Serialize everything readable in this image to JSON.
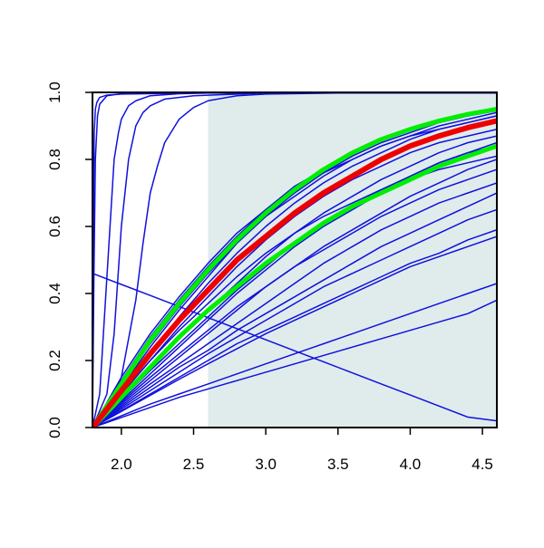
{
  "chart_data": {
    "type": "line",
    "title": "",
    "xlabel": "",
    "ylabel": "",
    "xlim": [
      1.8,
      4.6
    ],
    "ylim": [
      0.0,
      1.0
    ],
    "x_ticks": [
      "2.0",
      "2.5",
      "3.0",
      "3.5",
      "4.0",
      "4.5"
    ],
    "y_ticks": [
      "0.0",
      "0.2",
      "0.4",
      "0.6",
      "0.8",
      "1.0"
    ],
    "grid": false,
    "legend": "none",
    "shaded_region": {
      "x": [
        2.6,
        4.6
      ],
      "y": [
        0.0,
        1.0
      ],
      "color": "#e0ecec"
    },
    "colors": {
      "default": "#1010dd",
      "highlight": "#ee0000",
      "bounds": "#00ee00"
    },
    "series": [
      {
        "x": [
          1.8,
          1.805,
          1.812,
          1.82,
          1.83,
          1.85,
          1.9,
          2.0,
          2.5,
          3.0,
          4.6
        ],
        "y": [
          0.0,
          0.5,
          0.88,
          0.95,
          0.97,
          0.985,
          0.992,
          0.995,
          0.998,
          0.998,
          0.998
        ],
        "color": "blue",
        "width": 1.5
      },
      {
        "x": [
          1.8,
          1.81,
          1.82,
          1.835,
          1.85,
          1.9,
          2.0,
          2.5,
          4.6
        ],
        "y": [
          0.0,
          0.45,
          0.8,
          0.93,
          0.965,
          0.99,
          0.996,
          0.998,
          0.998
        ],
        "color": "blue",
        "width": 1.5
      },
      {
        "x": [
          1.8,
          1.85,
          1.9,
          1.95,
          1.98,
          2.0,
          2.05,
          2.1,
          2.2,
          2.4,
          2.6,
          4.6
        ],
        "y": [
          0.0,
          0.1,
          0.45,
          0.8,
          0.88,
          0.92,
          0.96,
          0.975,
          0.99,
          0.996,
          0.998,
          0.998
        ],
        "color": "blue",
        "width": 1.5
      },
      {
        "x": [
          1.8,
          1.9,
          1.95,
          2.0,
          2.05,
          2.08,
          2.1,
          2.15,
          2.2,
          2.3,
          2.5,
          3.0,
          4.6
        ],
        "y": [
          0.0,
          0.1,
          0.28,
          0.6,
          0.8,
          0.86,
          0.9,
          0.94,
          0.96,
          0.98,
          0.99,
          0.998,
          0.998
        ],
        "color": "blue",
        "width": 1.5
      },
      {
        "x": [
          1.8,
          1.9,
          2.0,
          2.1,
          2.15,
          2.2,
          2.25,
          2.3,
          2.4,
          2.5,
          2.6,
          2.8,
          3.0,
          3.5,
          4.6
        ],
        "y": [
          0.0,
          0.05,
          0.15,
          0.38,
          0.55,
          0.7,
          0.78,
          0.85,
          0.92,
          0.955,
          0.975,
          0.99,
          0.995,
          0.998,
          0.998
        ],
        "color": "blue",
        "width": 1.5
      },
      {
        "x": [
          1.8,
          2.0,
          2.2,
          2.4,
          2.6,
          2.8,
          3.0,
          3.2,
          3.4,
          3.6,
          3.8,
          4.0,
          4.2,
          4.4,
          4.6
        ],
        "y": [
          0.46,
          0.427,
          0.394,
          0.361,
          0.328,
          0.295,
          0.262,
          0.229,
          0.196,
          0.163,
          0.13,
          0.097,
          0.064,
          0.031,
          0.02
        ],
        "color": "blue",
        "width": 1.5
      },
      {
        "x": [
          1.8,
          2.0,
          2.2,
          2.4,
          2.6,
          2.8,
          3.0,
          3.2,
          3.4,
          3.6,
          3.8,
          4.0,
          4.2,
          4.4,
          4.6
        ],
        "y": [
          0.0,
          0.15,
          0.28,
          0.39,
          0.49,
          0.58,
          0.65,
          0.71,
          0.76,
          0.8,
          0.84,
          0.87,
          0.89,
          0.91,
          0.93
        ],
        "color": "blue",
        "width": 1.5
      },
      {
        "x": [
          1.8,
          2.0,
          2.2,
          2.4,
          2.6,
          2.8,
          3.0,
          3.2,
          3.4,
          3.6,
          3.8,
          4.0,
          4.2,
          4.4,
          4.6
        ],
        "y": [
          0.0,
          0.13,
          0.25,
          0.36,
          0.46,
          0.55,
          0.63,
          0.69,
          0.75,
          0.8,
          0.84,
          0.87,
          0.9,
          0.92,
          0.94
        ],
        "color": "blue",
        "width": 1.5
      },
      {
        "x": [
          1.8,
          2.0,
          2.2,
          2.4,
          2.6,
          2.8,
          3.0,
          3.2,
          3.4,
          3.6,
          3.8,
          4.0,
          4.2,
          4.4,
          4.6
        ],
        "y": [
          0.0,
          0.11,
          0.22,
          0.33,
          0.43,
          0.52,
          0.6,
          0.67,
          0.73,
          0.78,
          0.82,
          0.86,
          0.89,
          0.91,
          0.93
        ],
        "color": "blue",
        "width": 1.5
      },
      {
        "x": [
          1.8,
          2.0,
          2.2,
          2.4,
          2.6,
          2.8,
          3.0,
          3.2,
          3.4,
          3.6,
          3.8,
          4.0,
          4.2,
          4.4,
          4.6
        ],
        "y": [
          0.0,
          0.1,
          0.2,
          0.3,
          0.39,
          0.48,
          0.56,
          0.63,
          0.69,
          0.74,
          0.78,
          0.82,
          0.85,
          0.87,
          0.89
        ],
        "color": "blue",
        "width": 1.5
      },
      {
        "x": [
          1.8,
          2.0,
          2.2,
          2.4,
          2.6,
          2.8,
          3.0,
          3.2,
          3.4,
          3.6,
          3.8,
          4.0,
          4.2,
          4.4,
          4.6
        ],
        "y": [
          0.0,
          0.09,
          0.18,
          0.27,
          0.35,
          0.43,
          0.51,
          0.58,
          0.64,
          0.69,
          0.74,
          0.78,
          0.82,
          0.85,
          0.87
        ],
        "color": "blue",
        "width": 1.5
      },
      {
        "x": [
          1.8,
          2.0,
          2.2,
          2.4,
          2.6,
          2.8,
          3.0,
          3.2,
          3.4,
          3.6,
          3.8,
          4.0,
          4.2,
          4.4,
          4.6
        ],
        "y": [
          0.0,
          0.08,
          0.16,
          0.24,
          0.32,
          0.4,
          0.47,
          0.54,
          0.6,
          0.65,
          0.7,
          0.75,
          0.79,
          0.82,
          0.85
        ],
        "color": "blue",
        "width": 1.5
      },
      {
        "x": [
          1.8,
          2.0,
          2.2,
          2.4,
          2.6,
          2.8,
          3.0,
          3.2,
          3.4,
          3.6,
          3.8,
          4.0,
          4.2,
          4.4,
          4.6
        ],
        "y": [
          0.0,
          0.07,
          0.14,
          0.21,
          0.28,
          0.35,
          0.42,
          0.48,
          0.54,
          0.59,
          0.64,
          0.69,
          0.73,
          0.77,
          0.8
        ],
        "color": "blue",
        "width": 1.5
      },
      {
        "x": [
          1.8,
          2.0,
          2.2,
          2.4,
          2.6,
          2.8,
          3.0,
          3.2,
          3.4,
          3.6,
          3.8,
          4.0,
          4.2,
          4.4,
          4.6
        ],
        "y": [
          0.0,
          0.065,
          0.13,
          0.19,
          0.25,
          0.31,
          0.37,
          0.43,
          0.49,
          0.54,
          0.59,
          0.63,
          0.67,
          0.7,
          0.73
        ],
        "color": "blue",
        "width": 1.5
      },
      {
        "x": [
          1.8,
          2.0,
          2.2,
          2.4,
          2.6,
          2.8,
          3.0,
          3.2,
          3.4,
          3.6,
          3.8,
          4.0,
          4.2,
          4.4,
          4.6
        ],
        "y": [
          0.0,
          0.06,
          0.12,
          0.18,
          0.23,
          0.29,
          0.34,
          0.39,
          0.44,
          0.49,
          0.54,
          0.58,
          0.62,
          0.66,
          0.7
        ],
        "color": "blue",
        "width": 1.5
      },
      {
        "x": [
          1.8,
          2.0,
          2.2,
          2.4,
          2.6,
          2.8,
          3.0,
          3.2,
          3.4,
          3.6,
          3.8,
          4.0,
          4.2,
          4.4,
          4.6
        ],
        "y": [
          0.0,
          0.05,
          0.1,
          0.15,
          0.2,
          0.25,
          0.29,
          0.33,
          0.37,
          0.41,
          0.45,
          0.49,
          0.52,
          0.56,
          0.59
        ],
        "color": "blue",
        "width": 1.5
      },
      {
        "x": [
          1.8,
          2.0,
          2.2,
          2.4,
          2.6,
          2.8,
          3.0,
          3.2,
          3.4,
          3.6,
          3.8,
          4.0,
          4.2,
          4.4,
          4.6
        ],
        "y": [
          0.0,
          0.048,
          0.096,
          0.144,
          0.19,
          0.235,
          0.28,
          0.32,
          0.36,
          0.4,
          0.44,
          0.48,
          0.51,
          0.54,
          0.57
        ],
        "color": "blue",
        "width": 1.5
      },
      {
        "x": [
          1.8,
          2.0,
          2.2,
          2.4,
          2.6,
          2.8,
          3.0,
          3.2,
          3.4,
          3.6,
          3.8,
          4.0,
          4.2,
          4.4,
          4.6
        ],
        "y": [
          0.0,
          0.035,
          0.07,
          0.1,
          0.13,
          0.16,
          0.19,
          0.22,
          0.25,
          0.28,
          0.31,
          0.34,
          0.37,
          0.4,
          0.43
        ],
        "color": "blue",
        "width": 1.5
      },
      {
        "x": [
          1.8,
          2.0,
          2.2,
          2.4,
          2.6,
          2.8,
          3.0,
          3.2,
          3.4,
          3.6,
          3.8,
          4.0,
          4.2,
          4.4,
          4.6
        ],
        "y": [
          0.0,
          0.03,
          0.06,
          0.09,
          0.115,
          0.14,
          0.165,
          0.19,
          0.215,
          0.24,
          0.265,
          0.29,
          0.315,
          0.34,
          0.38
        ],
        "color": "blue",
        "width": 1.5
      },
      {
        "x": [
          1.8,
          2.0,
          2.2,
          2.4,
          2.6,
          2.8,
          3.0,
          3.2,
          3.4,
          3.6,
          3.8,
          4.0,
          4.2,
          4.4,
          4.6
        ],
        "y": [
          0.0,
          0.12,
          0.24,
          0.35,
          0.45,
          0.55,
          0.63,
          0.7,
          0.76,
          0.81,
          0.85,
          0.88,
          0.91,
          0.93,
          0.95
        ],
        "color": "blue",
        "width": 1.5
      },
      {
        "x": [
          1.8,
          2.0,
          2.2,
          2.4,
          2.6,
          2.8,
          3.0,
          3.2,
          3.4,
          3.6,
          3.8,
          4.0,
          4.2,
          4.4,
          4.6
        ],
        "y": [
          0.0,
          0.1,
          0.2,
          0.29,
          0.37,
          0.45,
          0.52,
          0.58,
          0.63,
          0.67,
          0.71,
          0.74,
          0.77,
          0.79,
          0.81
        ],
        "color": "blue",
        "width": 1.5
      },
      {
        "x": [
          1.8,
          2.0,
          2.2,
          2.4,
          2.6,
          2.8,
          3.0,
          3.2,
          3.4,
          3.6,
          3.8,
          4.0,
          4.2,
          4.4,
          4.6
        ],
        "y": [
          0.0,
          0.075,
          0.15,
          0.22,
          0.29,
          0.36,
          0.42,
          0.48,
          0.53,
          0.58,
          0.63,
          0.67,
          0.71,
          0.74,
          0.77
        ],
        "color": "blue",
        "width": 1.5
      },
      {
        "x": [
          1.8,
          2.0,
          2.2,
          2.4,
          2.6,
          2.8,
          3.0,
          3.2,
          3.4,
          3.6,
          3.8,
          4.0,
          4.2,
          4.4,
          4.6
        ],
        "y": [
          0.0,
          0.085,
          0.17,
          0.25,
          0.33,
          0.41,
          0.48,
          0.55,
          0.61,
          0.66,
          0.71,
          0.75,
          0.79,
          0.82,
          0.84
        ],
        "color": "blue",
        "width": 1.5
      },
      {
        "x": [
          1.8,
          2.0,
          2.2,
          2.4,
          2.6,
          2.8,
          3.0,
          3.2,
          3.4,
          3.6,
          3.8,
          4.0,
          4.2,
          4.4,
          4.6
        ],
        "y": [
          0.0,
          0.055,
          0.11,
          0.165,
          0.22,
          0.27,
          0.32,
          0.37,
          0.42,
          0.46,
          0.5,
          0.54,
          0.58,
          0.62,
          0.65
        ],
        "color": "blue",
        "width": 1.5
      },
      {
        "x": [
          1.8,
          2.0,
          2.2,
          2.4,
          2.6,
          2.8,
          3.0,
          3.2,
          3.4,
          3.6,
          3.8,
          4.0,
          4.2,
          4.4,
          4.6
        ],
        "y": [
          0.0,
          0.14,
          0.27,
          0.38,
          0.48,
          0.57,
          0.65,
          0.72,
          0.77,
          0.82,
          0.86,
          0.89,
          0.91,
          0.93,
          0.945
        ],
        "color": "blue",
        "width": 1.5
      },
      {
        "x": [
          1.8,
          2.0,
          2.2,
          2.4,
          2.6,
          2.8,
          3.0,
          3.2,
          3.4,
          3.6,
          3.8,
          4.0,
          4.2,
          4.4,
          4.6
        ],
        "y": [
          0.0,
          0.13,
          0.26,
          0.37,
          0.47,
          0.56,
          0.64,
          0.71,
          0.77,
          0.82,
          0.86,
          0.89,
          0.915,
          0.935,
          0.95
        ],
        "color": "green",
        "width": 5
      },
      {
        "x": [
          1.8,
          2.0,
          2.2,
          2.4,
          2.6,
          2.8,
          3.0,
          3.2,
          3.4,
          3.6,
          3.8,
          4.0,
          4.2,
          4.4,
          4.6
        ],
        "y": [
          0.0,
          0.09,
          0.18,
          0.27,
          0.35,
          0.42,
          0.49,
          0.55,
          0.61,
          0.66,
          0.7,
          0.74,
          0.78,
          0.81,
          0.84
        ],
        "color": "green",
        "width": 5
      },
      {
        "x": [
          1.8,
          2.0,
          2.2,
          2.4,
          2.6,
          2.8,
          3.0,
          3.2,
          3.4,
          3.6,
          3.8,
          4.0,
          4.2,
          4.4,
          4.6
        ],
        "y": [
          0.0,
          0.11,
          0.22,
          0.32,
          0.41,
          0.5,
          0.57,
          0.64,
          0.7,
          0.75,
          0.8,
          0.84,
          0.87,
          0.895,
          0.915
        ],
        "color": "red",
        "width": 6
      }
    ]
  }
}
